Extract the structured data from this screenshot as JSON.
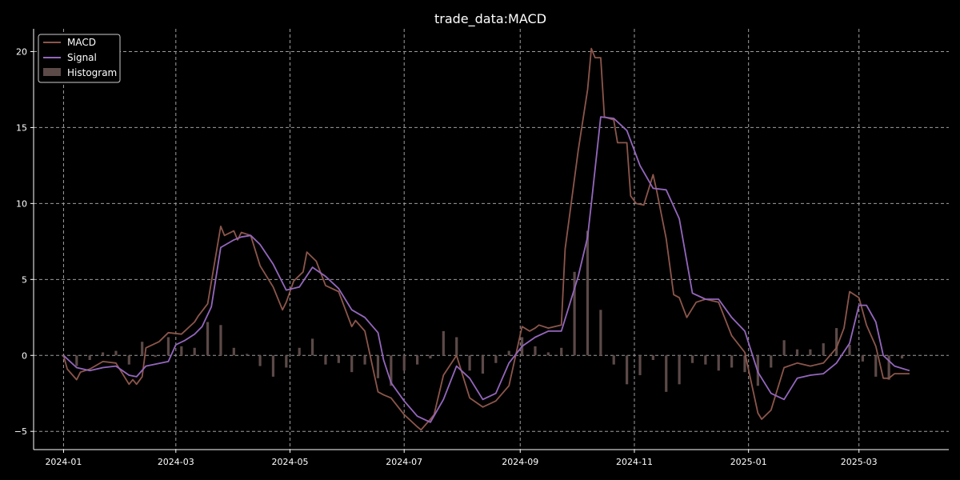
{
  "chart_data": {
    "type": "line",
    "title": "trade_data:MACD",
    "xlabel": "",
    "ylabel": "",
    "x_range": [
      "2023-12-16",
      "2025-04-18"
    ],
    "ylim": [
      -6.2,
      21.5
    ],
    "x_ticks": [
      {
        "date": "2024-01-01",
        "label": "2024-01"
      },
      {
        "date": "2024-03-01",
        "label": "2024-03"
      },
      {
        "date": "2024-05-01",
        "label": "2024-05"
      },
      {
        "date": "2024-07-01",
        "label": "2024-07"
      },
      {
        "date": "2024-09-01",
        "label": "2024-09"
      },
      {
        "date": "2024-11-01",
        "label": "2024-11"
      },
      {
        "date": "2025-01-01",
        "label": "2025-01"
      },
      {
        "date": "2025-03-01",
        "label": "2025-03"
      }
    ],
    "y_ticks": [
      {
        "value": -5,
        "label": "−5"
      },
      {
        "value": 0,
        "label": "0"
      },
      {
        "value": 5,
        "label": "5"
      },
      {
        "value": 10,
        "label": "10"
      },
      {
        "value": 15,
        "label": "15"
      },
      {
        "value": 20,
        "label": "20"
      }
    ],
    "grid": true,
    "legend": "top-left",
    "colors": {
      "macd": "#8c564b",
      "signal": "#9467bd",
      "histogram": "#5c4a48",
      "grid": "#9e9e9e",
      "axis": "#ffffff"
    },
    "series": [
      {
        "name": "MACD",
        "x": [
          "2024-01-01",
          "2024-01-03",
          "2024-01-08",
          "2024-01-10",
          "2024-01-15",
          "2024-01-22",
          "2024-01-29",
          "2024-02-05",
          "2024-02-07",
          "2024-02-09",
          "2024-02-12",
          "2024-02-14",
          "2024-02-21",
          "2024-02-26",
          "2024-03-04",
          "2024-03-11",
          "2024-03-13",
          "2024-03-18",
          "2024-03-25",
          "2024-03-27",
          "2024-04-01",
          "2024-04-03",
          "2024-04-05",
          "2024-04-10",
          "2024-04-15",
          "2024-04-22",
          "2024-04-27",
          "2024-04-29",
          "2024-05-03",
          "2024-05-08",
          "2024-05-10",
          "2024-05-15",
          "2024-05-20",
          "2024-05-27",
          "2024-06-03",
          "2024-06-05",
          "2024-06-10",
          "2024-06-17",
          "2024-06-20",
          "2024-06-24",
          "2024-07-01",
          "2024-07-08",
          "2024-07-10",
          "2024-07-15",
          "2024-07-17",
          "2024-07-22",
          "2024-07-29",
          "2024-08-05",
          "2024-08-12",
          "2024-08-19",
          "2024-08-26",
          "2024-09-02",
          "2024-09-06",
          "2024-09-09",
          "2024-09-11",
          "2024-09-16",
          "2024-09-23",
          "2024-09-25",
          "2024-10-02",
          "2024-10-07",
          "2024-10-09",
          "2024-10-11",
          "2024-10-14",
          "2024-10-16",
          "2024-10-21",
          "2024-10-23",
          "2024-10-28",
          "2024-10-30",
          "2024-11-02",
          "2024-11-06",
          "2024-11-11",
          "2024-11-13",
          "2024-11-18",
          "2024-11-22",
          "2024-11-25",
          "2024-11-29",
          "2024-12-04",
          "2024-12-09",
          "2024-12-16",
          "2024-12-23",
          "2024-12-30",
          "2025-01-06",
          "2025-01-08",
          "2025-01-13",
          "2025-01-20",
          "2025-01-27",
          "2025-02-03",
          "2025-02-10",
          "2025-02-17",
          "2025-02-21",
          "2025-02-24",
          "2025-03-01",
          "2025-03-05",
          "2025-03-10",
          "2025-03-14",
          "2025-03-17",
          "2025-03-20",
          "2025-03-24",
          "2025-03-28"
        ],
        "values": [
          0.0,
          -0.9,
          -1.6,
          -1.1,
          -0.9,
          -0.4,
          -0.5,
          -1.9,
          -1.6,
          -1.9,
          -1.4,
          0.5,
          0.9,
          1.5,
          1.4,
          2.2,
          2.6,
          3.4,
          8.5,
          7.9,
          8.2,
          7.6,
          8.1,
          7.9,
          5.9,
          4.5,
          3.0,
          3.5,
          4.9,
          5.5,
          6.8,
          6.2,
          4.6,
          4.2,
          1.9,
          2.3,
          1.6,
          -2.4,
          -2.6,
          -2.8,
          -3.9,
          -4.7,
          -4.9,
          -4.2,
          -3.9,
          -1.3,
          0.0,
          -2.8,
          -3.4,
          -3.0,
          -2.0,
          1.9,
          1.6,
          1.8,
          2.0,
          1.8,
          2.0,
          7.0,
          13.5,
          17.5,
          20.2,
          19.6,
          19.6,
          15.7,
          15.5,
          14.0,
          14.0,
          10.5,
          10.0,
          9.9,
          11.9,
          10.8,
          7.7,
          4.0,
          3.8,
          2.5,
          3.5,
          3.7,
          3.5,
          1.3,
          0.2,
          -3.8,
          -4.2,
          -3.6,
          -0.8,
          -0.5,
          -0.7,
          -0.5,
          0.5,
          1.8,
          4.2,
          3.8,
          2.0,
          0.6,
          -1.5,
          -1.5,
          -1.2,
          -1.2,
          -1.2
        ]
      },
      {
        "name": "Signal",
        "x": [
          "2024-01-01",
          "2024-01-08",
          "2024-01-15",
          "2024-01-22",
          "2024-01-29",
          "2024-02-05",
          "2024-02-09",
          "2024-02-14",
          "2024-02-26",
          "2024-03-01",
          "2024-03-06",
          "2024-03-11",
          "2024-03-15",
          "2024-03-20",
          "2024-03-25",
          "2024-04-01",
          "2024-04-05",
          "2024-04-10",
          "2024-04-15",
          "2024-04-22",
          "2024-04-29",
          "2024-05-06",
          "2024-05-13",
          "2024-05-20",
          "2024-05-27",
          "2024-06-03",
          "2024-06-10",
          "2024-06-17",
          "2024-06-20",
          "2024-06-24",
          "2024-07-01",
          "2024-07-08",
          "2024-07-15",
          "2024-07-22",
          "2024-07-29",
          "2024-08-05",
          "2024-08-12",
          "2024-08-19",
          "2024-08-26",
          "2024-09-02",
          "2024-09-09",
          "2024-09-16",
          "2024-09-23",
          "2024-10-02",
          "2024-10-07",
          "2024-10-09",
          "2024-10-14",
          "2024-10-21",
          "2024-10-28",
          "2024-11-04",
          "2024-11-11",
          "2024-11-18",
          "2024-11-25",
          "2024-12-02",
          "2024-12-09",
          "2024-12-16",
          "2024-12-23",
          "2024-12-30",
          "2025-01-06",
          "2025-01-13",
          "2025-01-20",
          "2025-01-27",
          "2025-02-03",
          "2025-02-10",
          "2025-02-17",
          "2025-02-24",
          "2025-03-01",
          "2025-03-05",
          "2025-03-10",
          "2025-03-14",
          "2025-03-20",
          "2025-03-28"
        ],
        "values": [
          0.0,
          -0.8,
          -1.0,
          -0.8,
          -0.7,
          -1.3,
          -1.4,
          -0.7,
          -0.4,
          0.7,
          1.0,
          1.4,
          1.9,
          3.2,
          7.1,
          7.6,
          7.8,
          7.9,
          7.3,
          6.0,
          4.3,
          4.5,
          5.8,
          5.2,
          4.4,
          3.0,
          2.5,
          1.5,
          -0.3,
          -1.8,
          -3.0,
          -4.0,
          -4.4,
          -2.9,
          -0.7,
          -1.5,
          -2.9,
          -2.5,
          -0.5,
          0.6,
          1.2,
          1.6,
          1.6,
          5.2,
          7.8,
          10.0,
          15.7,
          15.6,
          14.8,
          12.5,
          11.0,
          10.9,
          9.0,
          4.1,
          3.7,
          3.7,
          2.5,
          1.6,
          -1.1,
          -2.5,
          -2.9,
          -1.5,
          -1.3,
          -1.2,
          -0.5,
          0.8,
          3.3,
          3.3,
          2.2,
          0.0,
          -0.7,
          -1.0
        ]
      },
      {
        "name": "Histogram",
        "x": [
          "2024-01-01",
          "2024-01-08",
          "2024-01-15",
          "2024-01-22",
          "2024-01-29",
          "2024-02-05",
          "2024-02-12",
          "2024-02-19",
          "2024-02-26",
          "2024-03-04",
          "2024-03-11",
          "2024-03-18",
          "2024-03-25",
          "2024-04-01",
          "2024-04-08",
          "2024-04-15",
          "2024-04-22",
          "2024-04-29",
          "2024-05-06",
          "2024-05-13",
          "2024-05-20",
          "2024-05-27",
          "2024-06-03",
          "2024-06-10",
          "2024-06-17",
          "2024-06-24",
          "2024-07-01",
          "2024-07-08",
          "2024-07-15",
          "2024-07-22",
          "2024-07-29",
          "2024-08-05",
          "2024-08-12",
          "2024-08-19",
          "2024-08-26",
          "2024-09-02",
          "2024-09-09",
          "2024-09-16",
          "2024-09-23",
          "2024-09-30",
          "2024-10-07",
          "2024-10-14",
          "2024-10-21",
          "2024-10-28",
          "2024-11-04",
          "2024-11-11",
          "2024-11-18",
          "2024-11-25",
          "2024-12-02",
          "2024-12-09",
          "2024-12-16",
          "2024-12-23",
          "2024-12-30",
          "2025-01-06",
          "2025-01-13",
          "2025-01-20",
          "2025-01-27",
          "2025-02-03",
          "2025-02-10",
          "2025-02-17",
          "2025-02-24",
          "2025-03-03",
          "2025-03-10",
          "2025-03-17",
          "2025-03-24"
        ],
        "values": [
          -0.1,
          -0.7,
          -0.3,
          0.2,
          0.3,
          -0.6,
          0.9,
          -0.1,
          1.2,
          0.6,
          0.5,
          2.2,
          2.0,
          0.5,
          0.1,
          -0.7,
          -1.4,
          -0.8,
          0.5,
          1.1,
          -0.6,
          -0.5,
          -1.1,
          -0.6,
          -1.5,
          -2.0,
          -1.0,
          -0.6,
          -0.2,
          1.6,
          1.2,
          -1.0,
          -1.2,
          -0.5,
          0.3,
          1.2,
          0.6,
          0.2,
          0.5,
          5.5,
          8.2,
          3.0,
          -0.6,
          -1.9,
          -1.3,
          -0.3,
          -2.4,
          -1.9,
          -0.5,
          -0.6,
          -1.0,
          -0.8,
          -1.1,
          -2.0,
          -0.8,
          1.0,
          0.4,
          0.4,
          0.8,
          1.8,
          0.7,
          -0.4,
          -1.4,
          -1.6,
          -0.2
        ]
      }
    ]
  }
}
